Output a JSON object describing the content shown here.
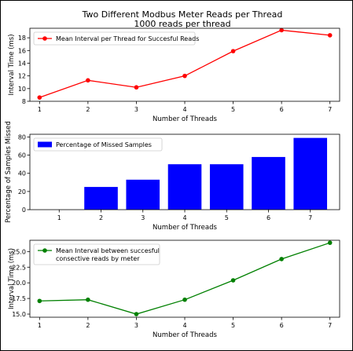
{
  "figure": {
    "title": "Two Different Modbus Meter Reads per Thread",
    "subtitle": "1000 reads per thread"
  },
  "chart_data": [
    {
      "type": "line",
      "x": [
        1,
        2,
        3,
        4,
        5,
        6,
        7
      ],
      "series": [
        {
          "name": "Mean Interval per Thread for Succesful Reads",
          "values": [
            8.6,
            11.3,
            10.2,
            12.0,
            15.9,
            19.2,
            18.4
          ],
          "color": "#ff0000"
        }
      ],
      "xlabel": "Number of Threads",
      "ylabel": "Interval Time (ms)",
      "xlim": [
        0.8,
        7.2
      ],
      "ylim": [
        8,
        19.5
      ],
      "yticks": [
        8,
        10,
        12,
        14,
        16,
        18
      ],
      "ytick_labels": [
        "8",
        "10",
        "12",
        "14",
        "16",
        "18"
      ],
      "legend_lines": [
        "Mean Interval per Thread for Succesful Reads"
      ],
      "legend": "upper left",
      "grid": false
    },
    {
      "type": "bar",
      "x": [
        1,
        2,
        3,
        4,
        5,
        6,
        7
      ],
      "series": [
        {
          "name": "Percentage of Missed Samples",
          "values": [
            0,
            25,
            33,
            50,
            50,
            58,
            79
          ],
          "color": "#0000ff"
        }
      ],
      "xlabel": "Number of Threads",
      "ylabel": "Percentage of Samples Missed",
      "xlim": [
        0.3,
        7.7
      ],
      "ylim": [
        0,
        83
      ],
      "yticks": [
        0,
        20,
        40,
        60,
        80
      ],
      "ytick_labels": [
        "0",
        "20",
        "40",
        "60",
        "80"
      ],
      "legend_lines": [
        "Percentage of Missed Samples"
      ],
      "legend": "upper left",
      "grid": false
    },
    {
      "type": "line",
      "x": [
        1,
        2,
        3,
        4,
        5,
        6,
        7
      ],
      "series": [
        {
          "name": "Mean Interval between succesful consective reads by meter",
          "values": [
            17.1,
            17.3,
            15.0,
            17.3,
            20.4,
            23.8,
            26.4
          ],
          "color": "#008000"
        }
      ],
      "xlabel": "Number of Threads",
      "ylabel": "Interval Time (ms)",
      "xlim": [
        0.8,
        7.2
      ],
      "ylim": [
        14.5,
        26.8
      ],
      "yticks": [
        15.0,
        17.5,
        20.0,
        22.5,
        25.0
      ],
      "ytick_labels": [
        "15.0",
        "17.5",
        "20.0",
        "22.5",
        "25.0"
      ],
      "legend_lines": [
        "Mean Interval between succesful",
        "consective reads by meter"
      ],
      "legend": "upper left",
      "grid": false
    }
  ]
}
